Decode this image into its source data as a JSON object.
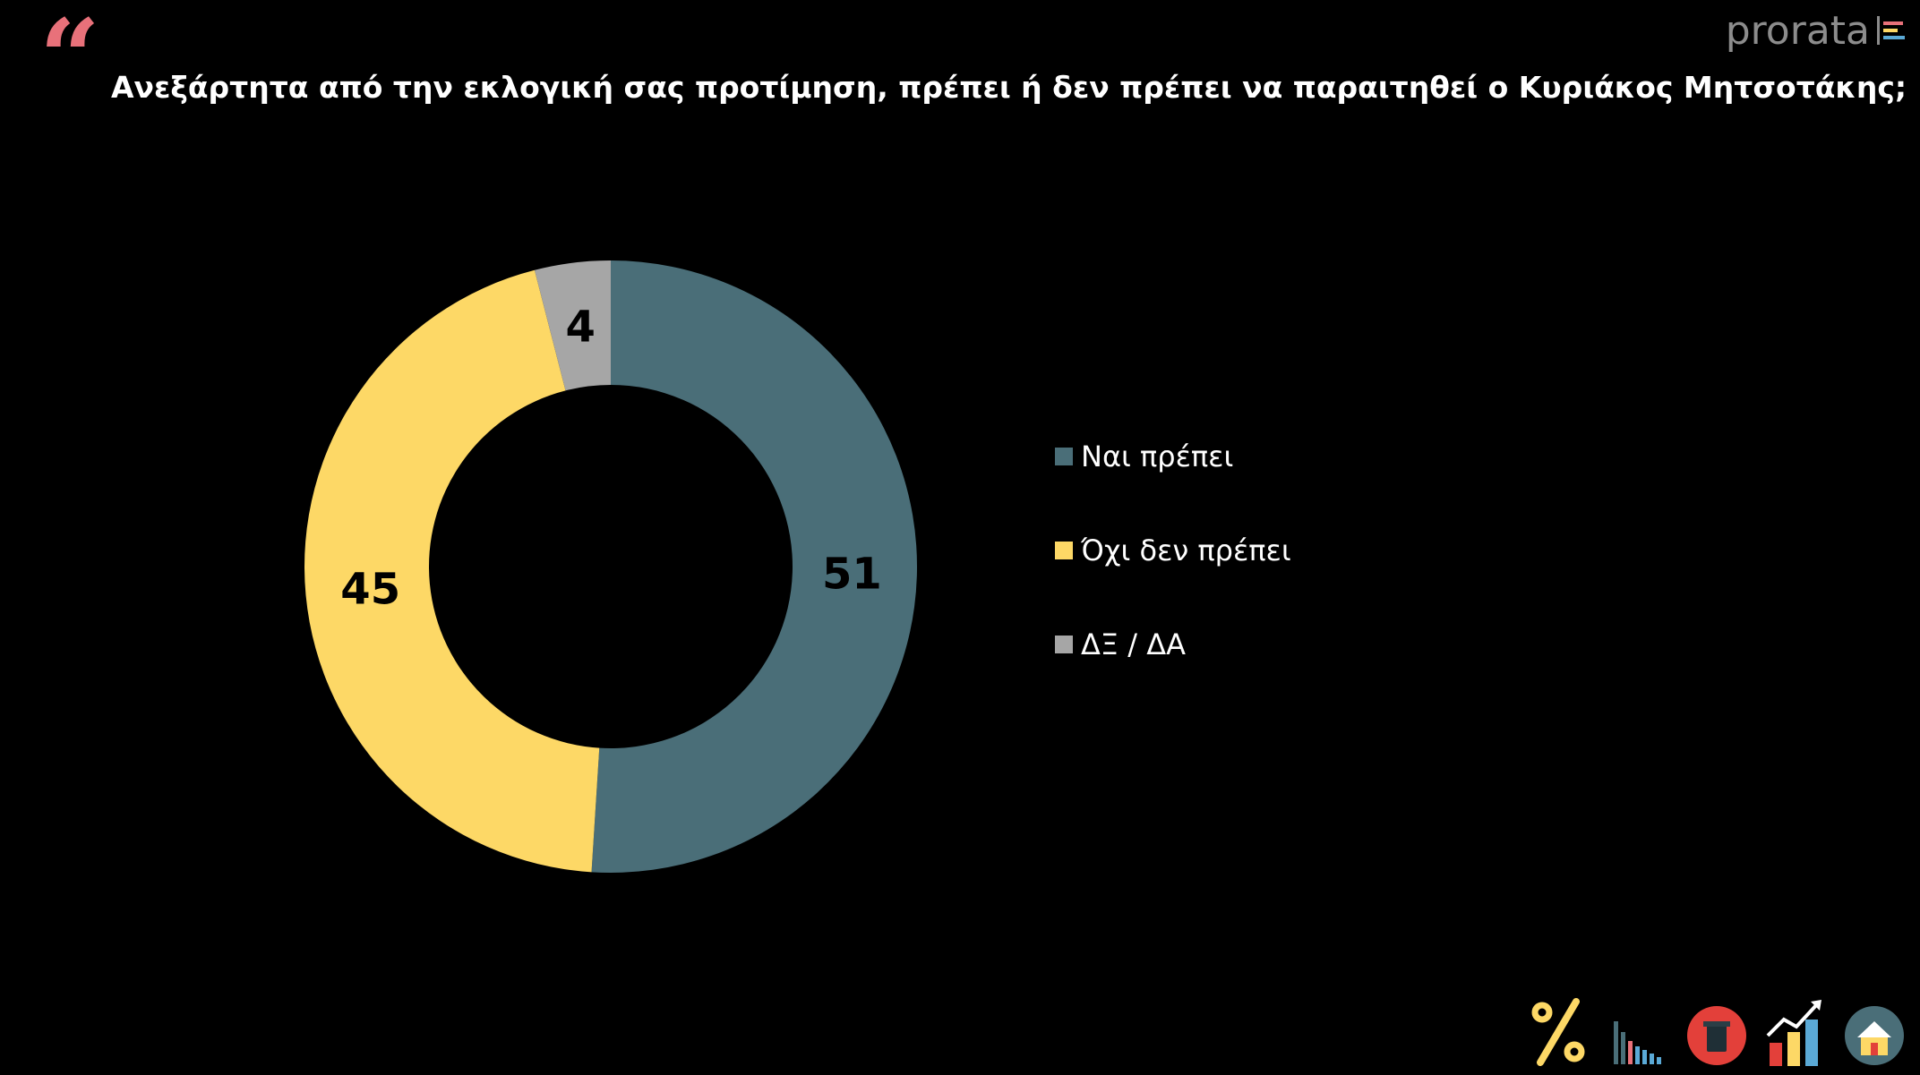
{
  "header": {
    "quote_mark": "“",
    "logo_text": "prorata",
    "question": "Ανεξάρτητα από την εκλογική σας προτίμηση, πρέπει ή δεν πρέπει να παραιτηθεί ο Κυριάκος Μητσοτάκης;"
  },
  "colors": {
    "background": "#000000",
    "quote": "#e8717a",
    "yes": "#4a6e78",
    "no": "#fdd866",
    "dk": "#a6a6a6"
  },
  "chart_data": {
    "type": "pie",
    "donut": true,
    "title": "Ανεξάρτητα από την εκλογική σας προτίμηση, πρέπει ή δεν πρέπει να παραιτηθεί ο Κυριάκος Μητσοτάκης;",
    "legend_position": "right",
    "series": [
      {
        "name": "Ναι πρέπει",
        "value": 51,
        "label": "51",
        "color": "#4a6e78"
      },
      {
        "name": "Όχι δεν πρέπει",
        "value": 45,
        "label": "45",
        "color": "#fdd866"
      },
      {
        "name": "ΔΞ / ΔΑ",
        "value": 4,
        "label": "4",
        "color": "#a6a6a6"
      }
    ]
  },
  "footer": {
    "icons": [
      "percent-icon",
      "bar-chart-icon",
      "ballot-icon",
      "growth-chart-icon",
      "home-icon"
    ]
  }
}
